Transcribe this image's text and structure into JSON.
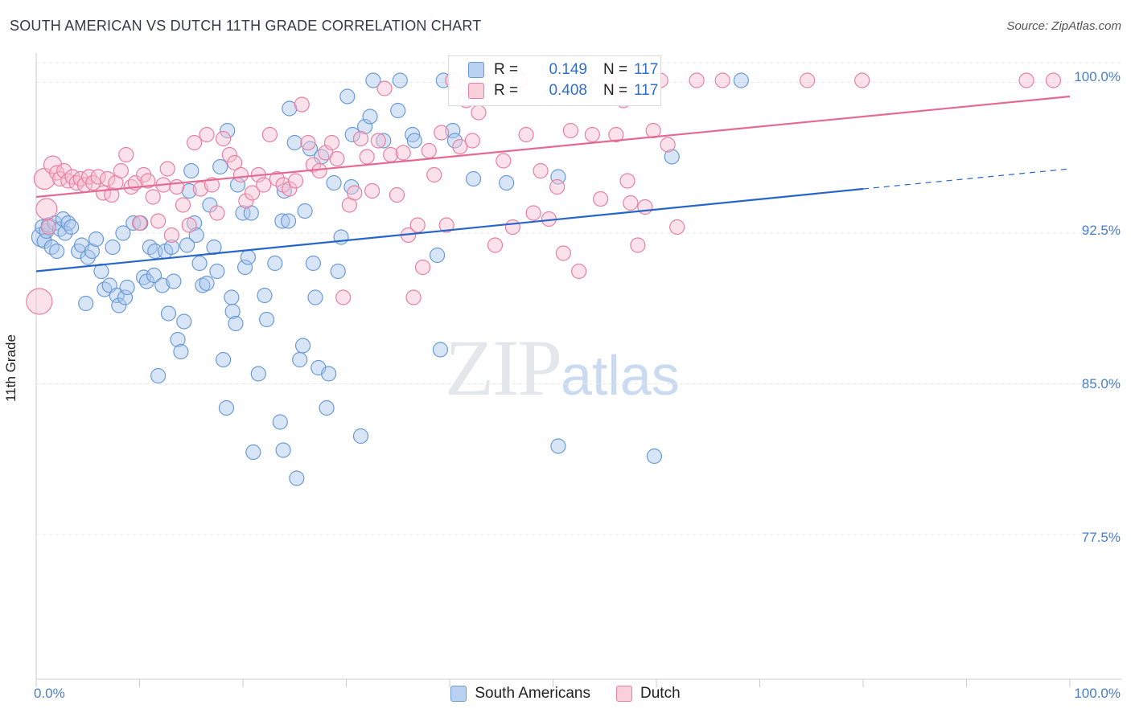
{
  "title": "SOUTH AMERICAN VS DUTCH 11TH GRADE CORRELATION CHART",
  "source": "Source: ZipAtlas.com",
  "watermark": {
    "zip": "ZIP",
    "atlas": "atlas"
  },
  "colors": {
    "south_americans": "#6a9ad6",
    "south_americans_fill": "#a9c6ec",
    "dutch": "#e77fa1",
    "dutch_fill": "#f6bfd0",
    "blue_line": "#2566c8",
    "pink_line": "#e46a95",
    "tick_text": "#4a7ec8"
  },
  "legend": {
    "rows": [
      {
        "r_label": "R =",
        "r_value": "0.149",
        "n_label": "N =",
        "n_value": "117"
      },
      {
        "r_label": "R =",
        "r_value": "0.408",
        "n_label": "N =",
        "n_value": "117"
      }
    ],
    "series": [
      "South Americans",
      "Dutch"
    ]
  },
  "chart_data": {
    "type": "scatter",
    "title": "SOUTH AMERICAN VS DUTCH 11TH GRADE CORRELATION CHART",
    "xlabel": "",
    "ylabel": "11th Grade",
    "xlim": [
      0,
      100
    ],
    "ylim": [
      70.3,
      101.3
    ],
    "x_tick_labels": [
      "0.0%",
      "100.0%"
    ],
    "y_ticks": [
      {
        "value": 100.0,
        "label": "100.0%"
      },
      {
        "value": 92.5,
        "label": "92.5%"
      },
      {
        "value": 85.0,
        "label": "85.0%"
      },
      {
        "value": 77.5,
        "label": "77.5%"
      }
    ],
    "grid": true,
    "legend_position": "top-center",
    "series": [
      {
        "name": "South Americans",
        "stats": {
          "R": 0.149,
          "N": 117
        },
        "trend": {
          "x0": 0,
          "y0": 90.6,
          "x1": 80,
          "y1": 94.7,
          "dashed_to_x": 100,
          "dashed_y": 95.7
        },
        "points": [
          [
            0.5,
            92.3
          ],
          [
            0.6,
            92.8
          ],
          [
            0.8,
            92.1
          ],
          [
            1.0,
            92.6
          ],
          [
            1.2,
            92.9
          ],
          [
            1.5,
            91.8
          ],
          [
            1.8,
            93.0
          ],
          [
            2.0,
            91.6
          ],
          [
            2.3,
            92.7
          ],
          [
            2.6,
            93.2
          ],
          [
            2.8,
            92.5
          ],
          [
            3.1,
            93.0
          ],
          [
            3.4,
            92.8
          ],
          [
            4.1,
            91.6
          ],
          [
            4.4,
            91.9
          ],
          [
            5.0,
            91.3
          ],
          [
            5.4,
            91.6
          ],
          [
            5.8,
            92.2
          ],
          [
            6.3,
            90.6
          ],
          [
            6.6,
            89.7
          ],
          [
            4.8,
            89.0
          ],
          [
            7.1,
            89.9
          ],
          [
            7.8,
            89.4
          ],
          [
            7.4,
            91.8
          ],
          [
            8.0,
            88.9
          ],
          [
            8.6,
            89.3
          ],
          [
            8.4,
            92.5
          ],
          [
            8.8,
            89.8
          ],
          [
            9.4,
            93.0
          ],
          [
            10.1,
            93.0
          ],
          [
            10.4,
            90.3
          ],
          [
            10.7,
            90.1
          ],
          [
            11.0,
            91.8
          ],
          [
            11.4,
            90.4
          ],
          [
            11.5,
            91.6
          ],
          [
            11.8,
            85.4
          ],
          [
            12.2,
            89.9
          ],
          [
            12.5,
            91.6
          ],
          [
            12.8,
            88.5
          ],
          [
            13.1,
            91.8
          ],
          [
            13.3,
            90.1
          ],
          [
            13.7,
            87.2
          ],
          [
            14.0,
            86.6
          ],
          [
            14.3,
            88.1
          ],
          [
            14.6,
            91.9
          ],
          [
            14.8,
            94.6
          ],
          [
            15.0,
            95.6
          ],
          [
            15.3,
            93.0
          ],
          [
            15.5,
            92.4
          ],
          [
            15.8,
            91.0
          ],
          [
            16.1,
            89.9
          ],
          [
            16.5,
            90.0
          ],
          [
            16.8,
            93.9
          ],
          [
            17.2,
            91.8
          ],
          [
            17.5,
            90.6
          ],
          [
            17.8,
            95.8
          ],
          [
            18.1,
            86.2
          ],
          [
            18.4,
            83.8
          ],
          [
            18.9,
            89.3
          ],
          [
            19.0,
            88.6
          ],
          [
            19.3,
            88.0
          ],
          [
            19.5,
            94.9
          ],
          [
            20.0,
            93.5
          ],
          [
            20.2,
            90.8
          ],
          [
            20.5,
            91.3
          ],
          [
            20.8,
            93.5
          ],
          [
            21.0,
            81.6
          ],
          [
            21.5,
            85.5
          ],
          [
            22.1,
            89.4
          ],
          [
            22.3,
            88.2
          ],
          [
            23.1,
            91.0
          ],
          [
            23.6,
            83.1
          ],
          [
            23.8,
            93.1
          ],
          [
            24.0,
            94.6
          ],
          [
            23.9,
            81.7
          ],
          [
            24.4,
            93.1
          ],
          [
            25.2,
            80.3
          ],
          [
            25.5,
            86.2
          ],
          [
            25.8,
            86.9
          ],
          [
            26.0,
            93.6
          ],
          [
            26.5,
            96.7
          ],
          [
            26.8,
            91.0
          ],
          [
            27.0,
            89.3
          ],
          [
            27.3,
            85.8
          ],
          [
            27.6,
            96.3
          ],
          [
            28.1,
            83.8
          ],
          [
            28.3,
            85.5
          ],
          [
            28.8,
            95.0
          ],
          [
            29.2,
            90.6
          ],
          [
            29.5,
            92.3
          ],
          [
            30.1,
            99.3
          ],
          [
            30.6,
            97.4
          ],
          [
            31.4,
            82.4
          ],
          [
            31.8,
            97.8
          ],
          [
            32.3,
            98.3
          ],
          [
            32.6,
            100.1
          ],
          [
            33.6,
            97.1
          ],
          [
            35.2,
            100.1
          ],
          [
            35.0,
            98.6
          ],
          [
            36.4,
            97.4
          ],
          [
            36.6,
            97.1
          ],
          [
            38.8,
            91.4
          ],
          [
            39.1,
            86.7
          ],
          [
            39.4,
            100.1
          ],
          [
            40.3,
            97.6
          ],
          [
            40.5,
            97.1
          ],
          [
            42.3,
            95.2
          ],
          [
            45.5,
            95.0
          ],
          [
            50.5,
            95.3
          ],
          [
            50.5,
            81.9
          ],
          [
            59.8,
            81.4
          ],
          [
            61.5,
            96.3
          ],
          [
            68.2,
            100.1
          ],
          [
            24.5,
            98.7
          ],
          [
            25.0,
            97.0
          ],
          [
            18.5,
            97.6
          ],
          [
            30.5,
            94.8
          ]
        ]
      },
      {
        "name": "Dutch",
        "stats": {
          "R": 0.408,
          "N": 117
        },
        "trend": {
          "x0": 0,
          "y0": 94.3,
          "x1": 100,
          "y1": 99.3
        },
        "points": [
          [
            0.3,
            89.1
          ],
          [
            0.8,
            95.2
          ],
          [
            1.0,
            93.7
          ],
          [
            1.2,
            92.8
          ],
          [
            1.6,
            95.9
          ],
          [
            2.0,
            95.5
          ],
          [
            2.3,
            95.2
          ],
          [
            2.7,
            95.6
          ],
          [
            3.1,
            95.1
          ],
          [
            3.5,
            95.3
          ],
          [
            3.9,
            95.0
          ],
          [
            4.3,
            95.2
          ],
          [
            4.7,
            94.9
          ],
          [
            5.1,
            95.3
          ],
          [
            5.5,
            95.0
          ],
          [
            6.0,
            95.3
          ],
          [
            6.5,
            94.5
          ],
          [
            6.9,
            95.2
          ],
          [
            7.3,
            94.4
          ],
          [
            7.7,
            95.0
          ],
          [
            8.2,
            95.6
          ],
          [
            8.7,
            96.4
          ],
          [
            9.2,
            94.8
          ],
          [
            9.6,
            95.0
          ],
          [
            10.0,
            93.0
          ],
          [
            10.4,
            95.4
          ],
          [
            10.8,
            95.1
          ],
          [
            11.3,
            94.3
          ],
          [
            11.8,
            93.1
          ],
          [
            12.3,
            94.9
          ],
          [
            12.7,
            95.7
          ],
          [
            13.1,
            92.4
          ],
          [
            13.6,
            94.8
          ],
          [
            14.2,
            93.9
          ],
          [
            14.8,
            92.9
          ],
          [
            15.3,
            97.0
          ],
          [
            15.9,
            94.7
          ],
          [
            16.5,
            97.4
          ],
          [
            17.0,
            94.9
          ],
          [
            17.5,
            93.5
          ],
          [
            18.1,
            97.2
          ],
          [
            18.7,
            96.4
          ],
          [
            19.2,
            96.0
          ],
          [
            19.8,
            95.4
          ],
          [
            20.3,
            94.1
          ],
          [
            20.9,
            94.5
          ],
          [
            21.5,
            95.4
          ],
          [
            22.0,
            94.9
          ],
          [
            22.6,
            97.4
          ],
          [
            23.3,
            95.2
          ],
          [
            23.9,
            94.9
          ],
          [
            24.5,
            94.7
          ],
          [
            25.1,
            95.1
          ],
          [
            25.7,
            98.9
          ],
          [
            26.3,
            97.0
          ],
          [
            26.8,
            95.9
          ],
          [
            27.4,
            95.6
          ],
          [
            28.0,
            96.5
          ],
          [
            28.6,
            97.0
          ],
          [
            29.1,
            96.2
          ],
          [
            29.7,
            89.3
          ],
          [
            30.3,
            93.9
          ],
          [
            30.8,
            94.5
          ],
          [
            31.4,
            97.2
          ],
          [
            32.0,
            96.3
          ],
          [
            32.5,
            94.6
          ],
          [
            33.1,
            97.1
          ],
          [
            33.7,
            99.7
          ],
          [
            34.3,
            96.4
          ],
          [
            34.9,
            94.4
          ],
          [
            35.5,
            96.5
          ],
          [
            36.0,
            92.4
          ],
          [
            36.5,
            89.3
          ],
          [
            36.9,
            92.9
          ],
          [
            37.4,
            90.8
          ],
          [
            38.0,
            96.6
          ],
          [
            38.5,
            95.4
          ],
          [
            39.2,
            97.5
          ],
          [
            39.7,
            92.9
          ],
          [
            40.3,
            100.1
          ],
          [
            41.0,
            96.8
          ],
          [
            41.6,
            99.1
          ],
          [
            42.2,
            97.1
          ],
          [
            42.8,
            98.5
          ],
          [
            43.3,
            100.1
          ],
          [
            44.4,
            91.9
          ],
          [
            45.2,
            96.1
          ],
          [
            46.1,
            92.8
          ],
          [
            46.8,
            100.1
          ],
          [
            47.4,
            97.4
          ],
          [
            48.1,
            93.5
          ],
          [
            48.8,
            95.6
          ],
          [
            49.6,
            93.2
          ],
          [
            50.4,
            94.8
          ],
          [
            51.0,
            91.5
          ],
          [
            51.7,
            97.6
          ],
          [
            52.5,
            90.6
          ],
          [
            53.1,
            100.1
          ],
          [
            53.8,
            97.4
          ],
          [
            54.6,
            94.2
          ],
          [
            55.4,
            100.1
          ],
          [
            56.1,
            97.4
          ],
          [
            56.8,
            99.1
          ],
          [
            57.5,
            94.0
          ],
          [
            58.2,
            91.9
          ],
          [
            58.9,
            93.8
          ],
          [
            59.7,
            97.6
          ],
          [
            60.4,
            100.1
          ],
          [
            61.1,
            96.9
          ],
          [
            62.0,
            92.8
          ],
          [
            63.9,
            100.1
          ],
          [
            66.4,
            100.1
          ],
          [
            74.6,
            100.1
          ],
          [
            79.9,
            100.1
          ],
          [
            95.8,
            100.1
          ],
          [
            98.4,
            100.1
          ],
          [
            57.2,
            95.1
          ]
        ]
      }
    ]
  }
}
